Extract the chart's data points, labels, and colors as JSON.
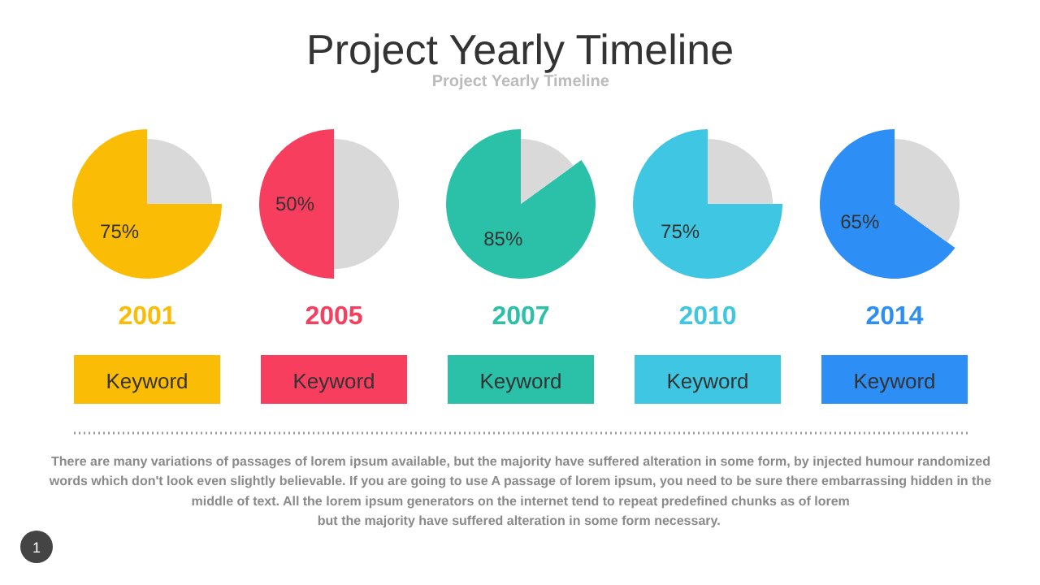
{
  "chart_data": [
    {
      "type": "other",
      "title": "Project Yearly Timeline",
      "subtitle": "Project Yearly Timeline",
      "annotations": [
        "There are many variations of passages of lorem ipsum available, but the majority have suffered alteration in some form, by injected humour randomized\nwords which don't look even slightly believable. If you are going to use A passage of lorem ipsum, you need to be sure there embarrassing hidden in the\nmiddle of text. All the lorem ipsum generators on the internet tend to repeat predefined chunks as of lorem\nbut the majority have suffered alteration in some form  necessary.",
        "1"
      ]
    },
    {
      "type": "pie",
      "xlabel": "2001",
      "annotations": [
        "Keyword"
      ],
      "categories": [
        null,
        null
      ],
      "values": [
        75,
        25
      ],
      "colors": [
        "#fbbc05",
        "#d9d9d9"
      ],
      "value_labels": [
        "75%",
        null
      ]
    },
    {
      "type": "pie",
      "xlabel": "2005",
      "annotations": [
        "Keyword"
      ],
      "categories": [
        null,
        null
      ],
      "values": [
        50,
        50
      ],
      "colors": [
        "#f83e5f",
        "#d9d9d9"
      ],
      "value_labels": [
        "50%",
        null
      ]
    },
    {
      "type": "pie",
      "xlabel": "2007",
      "annotations": [
        "Keyword"
      ],
      "categories": [
        null,
        null
      ],
      "values": [
        85,
        15
      ],
      "colors": [
        "#2bc0a8",
        "#d9d9d9"
      ],
      "value_labels": [
        "85%",
        null
      ]
    },
    {
      "type": "pie",
      "xlabel": "2010",
      "annotations": [
        "Keyword"
      ],
      "categories": [
        null,
        null
      ],
      "values": [
        75,
        25
      ],
      "colors": [
        "#3ec6e2",
        "#d9d9d9"
      ],
      "value_labels": [
        "75%",
        null
      ]
    },
    {
      "type": "pie",
      "xlabel": "2014",
      "annotations": [
        "Keyword"
      ],
      "categories": [
        null,
        null
      ],
      "values": [
        65,
        35
      ],
      "colors": [
        "#2d8ff5",
        "#d9d9d9"
      ],
      "value_labels": [
        "65%",
        null
      ]
    }
  ]
}
